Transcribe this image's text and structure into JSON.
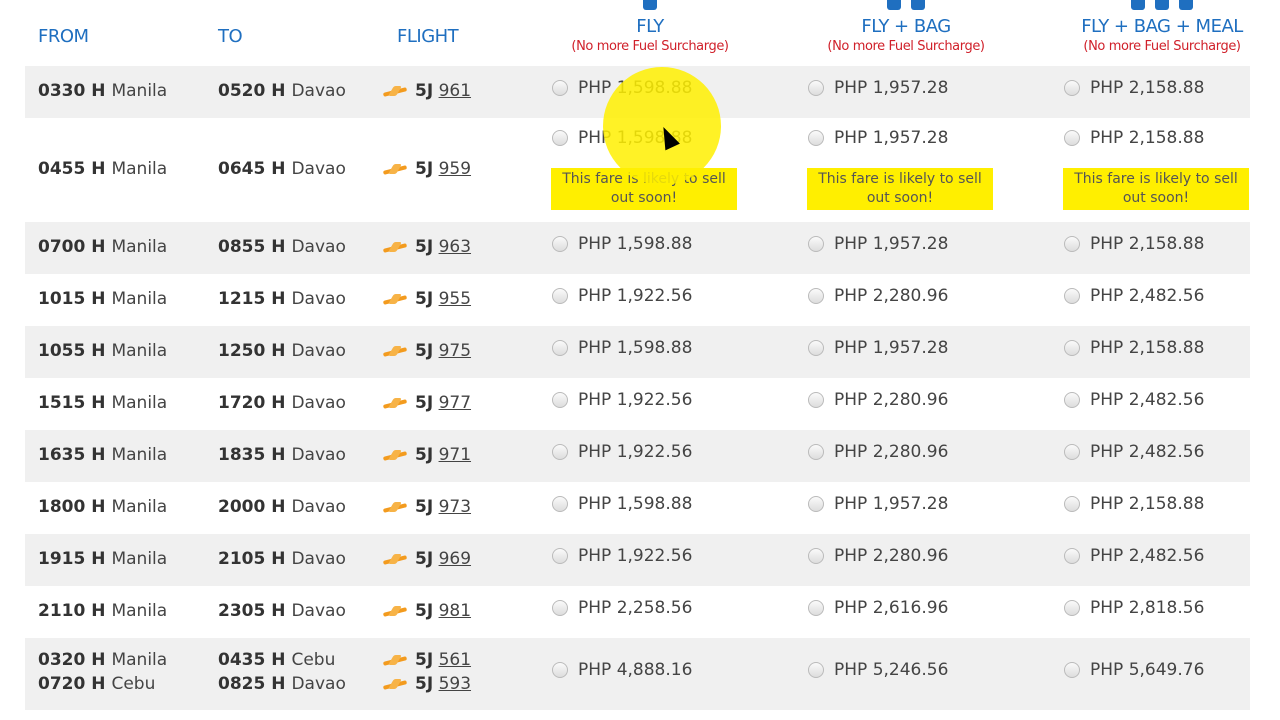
{
  "header": {
    "from": "FROM",
    "to": "TO",
    "flight": "FLIGHT",
    "fares": [
      {
        "title": "FLY",
        "note": "(No more Fuel Surcharge)"
      },
      {
        "title": "FLY + BAG",
        "note": "(No more Fuel Surcharge)"
      },
      {
        "title": "FLY + BAG + MEAL",
        "note": "(No more Fuel Surcharge)"
      }
    ]
  },
  "currency": "PHP",
  "warning": "This fare is likely to sell out soon!",
  "colors": {
    "header": "#1f6fc0",
    "note": "#d0202a",
    "warning_bg": "#ffef00",
    "plane": "#f39b1e"
  },
  "rows": [
    {
      "legs": [
        {
          "dep": "0330 H",
          "from": "Manila",
          "arr": "0520 H",
          "to": "Davao",
          "code": "5J",
          "num": "961"
        }
      ],
      "fares": [
        "1,598.88",
        "1,957.28",
        "2,158.88"
      ]
    },
    {
      "legs": [
        {
          "dep": "0455 H",
          "from": "Manila",
          "arr": "0645 H",
          "to": "Davao",
          "code": "5J",
          "num": "959"
        }
      ],
      "fares": [
        "1,598.88",
        "1,957.28",
        "2,158.88"
      ],
      "warn": true
    },
    {
      "legs": [
        {
          "dep": "0700 H",
          "from": "Manila",
          "arr": "0855 H",
          "to": "Davao",
          "code": "5J",
          "num": "963"
        }
      ],
      "fares": [
        "1,598.88",
        "1,957.28",
        "2,158.88"
      ]
    },
    {
      "legs": [
        {
          "dep": "1015 H",
          "from": "Manila",
          "arr": "1215 H",
          "to": "Davao",
          "code": "5J",
          "num": "955"
        }
      ],
      "fares": [
        "1,922.56",
        "2,280.96",
        "2,482.56"
      ]
    },
    {
      "legs": [
        {
          "dep": "1055 H",
          "from": "Manila",
          "arr": "1250 H",
          "to": "Davao",
          "code": "5J",
          "num": "975"
        }
      ],
      "fares": [
        "1,598.88",
        "1,957.28",
        "2,158.88"
      ]
    },
    {
      "legs": [
        {
          "dep": "1515 H",
          "from": "Manila",
          "arr": "1720 H",
          "to": "Davao",
          "code": "5J",
          "num": "977"
        }
      ],
      "fares": [
        "1,922.56",
        "2,280.96",
        "2,482.56"
      ]
    },
    {
      "legs": [
        {
          "dep": "1635 H",
          "from": "Manila",
          "arr": "1835 H",
          "to": "Davao",
          "code": "5J",
          "num": "971"
        }
      ],
      "fares": [
        "1,922.56",
        "2,280.96",
        "2,482.56"
      ]
    },
    {
      "legs": [
        {
          "dep": "1800 H",
          "from": "Manila",
          "arr": "2000 H",
          "to": "Davao",
          "code": "5J",
          "num": "973"
        }
      ],
      "fares": [
        "1,598.88",
        "1,957.28",
        "2,158.88"
      ]
    },
    {
      "legs": [
        {
          "dep": "1915 H",
          "from": "Manila",
          "arr": "2105 H",
          "to": "Davao",
          "code": "5J",
          "num": "969"
        }
      ],
      "fares": [
        "1,922.56",
        "2,280.96",
        "2,482.56"
      ]
    },
    {
      "legs": [
        {
          "dep": "2110 H",
          "from": "Manila",
          "arr": "2305 H",
          "to": "Davao",
          "code": "5J",
          "num": "981"
        }
      ],
      "fares": [
        "2,258.56",
        "2,616.96",
        "2,818.56"
      ]
    },
    {
      "legs": [
        {
          "dep": "0320 H",
          "from": "Manila",
          "arr": "0435 H",
          "to": "Cebu",
          "code": "5J",
          "num": "561"
        },
        {
          "dep": "0720 H",
          "from": "Cebu",
          "arr": "0825 H",
          "to": "Davao",
          "code": "5J",
          "num": "593"
        }
      ],
      "fares": [
        "4,888.16",
        "5,246.56",
        "5,649.76"
      ]
    }
  ]
}
